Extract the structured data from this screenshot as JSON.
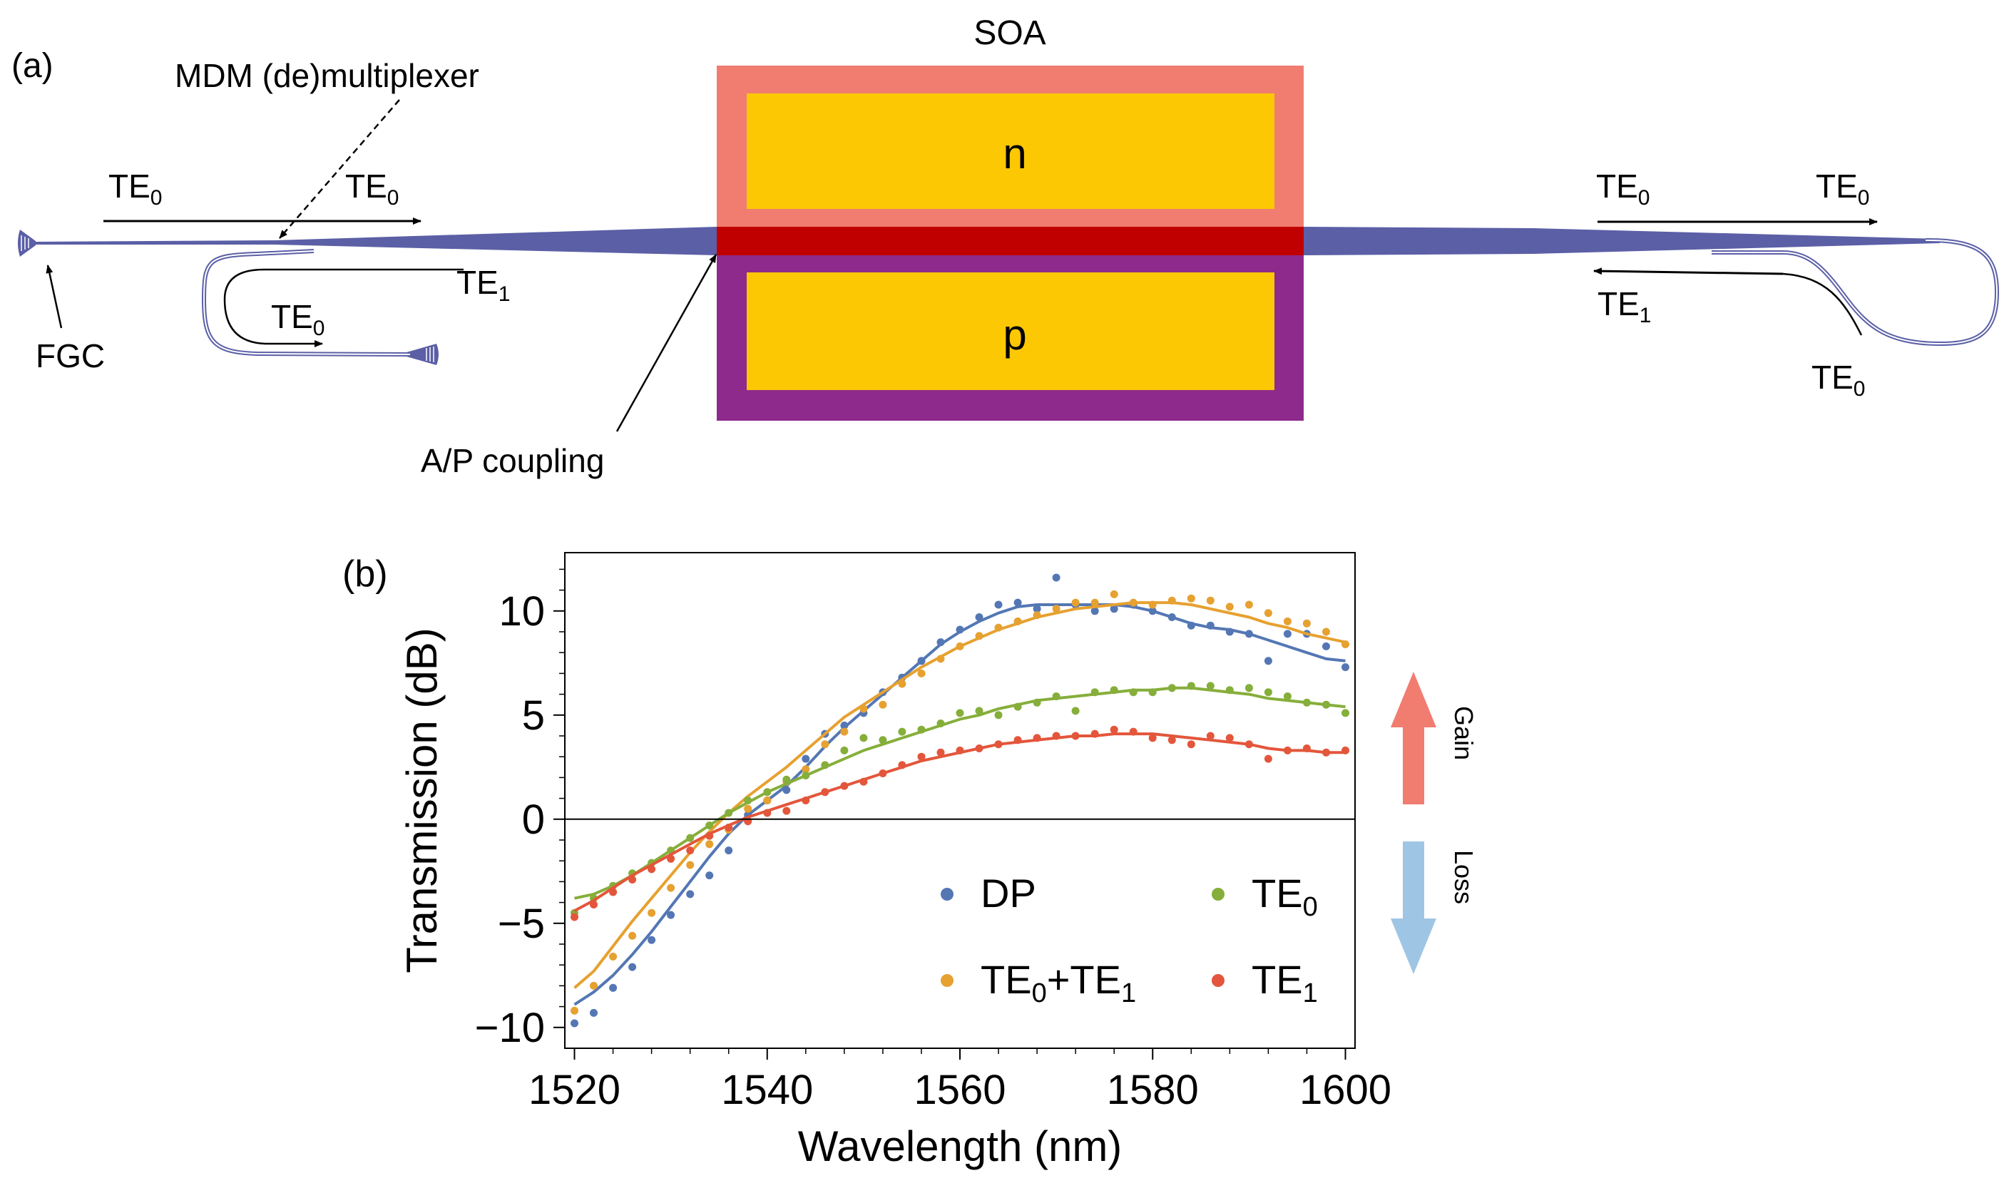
{
  "panel_a": {
    "label": "(a)",
    "soa_label": "SOA",
    "n_label": "n",
    "p_label": "p",
    "mdm_label": "MDM (de)multiplexer",
    "fgc_label": "FGC",
    "ap_label": "A/P coupling",
    "mode_te": "TE",
    "sub0": "0",
    "sub1": "1",
    "colors": {
      "waveguide": "#5b5fa6",
      "soa_outer_top": "#f17c70",
      "soa_outer_bottom": "#8e2a8c",
      "pad": "#fcc804",
      "active": "#c00000"
    }
  },
  "panel_b": {
    "label": "(b)"
  },
  "side": {
    "gain": "Gain",
    "loss": "Loss",
    "gain_color": "#f17c70",
    "loss_color": "#9fc5e4"
  },
  "chart_data": {
    "type": "scatter",
    "xlabel": "Wavelength (nm)",
    "ylabel": "Transmission (dB)",
    "xlim": [
      1519,
      1601
    ],
    "ylim": [
      -11,
      12.8
    ],
    "xticks": [
      1520,
      1540,
      1560,
      1580,
      1600
    ],
    "yticks": [
      -10,
      -5,
      0,
      5,
      10
    ],
    "legend_position": "lower-right",
    "series": [
      {
        "name": "DP",
        "name_plain": "DP",
        "color": "#5477b4",
        "points_x": [
          1520,
          1522,
          1524,
          1526,
          1528,
          1530,
          1532,
          1534,
          1536,
          1538,
          1540,
          1542,
          1544,
          1546,
          1548,
          1550,
          1552,
          1554,
          1556,
          1558,
          1560,
          1562,
          1564,
          1566,
          1568,
          1570,
          1572,
          1574,
          1576,
          1578,
          1580,
          1582,
          1584,
          1586,
          1588,
          1590,
          1592,
          1594,
          1596,
          1598,
          1600
        ],
        "points_y": [
          -9.8,
          -9.3,
          -8.1,
          -7.1,
          -5.8,
          -4.6,
          -3.6,
          -2.7,
          -1.5,
          0.2,
          0.9,
          1.4,
          2.9,
          4.1,
          4.5,
          5.1,
          6.1,
          6.8,
          7.6,
          8.5,
          9.1,
          9.7,
          10.3,
          10.4,
          10.1,
          11.6,
          10.3,
          10.0,
          10.1,
          10.3,
          10.0,
          9.7,
          9.3,
          9.3,
          9.0,
          8.9,
          7.6,
          8.9,
          8.9,
          8.3,
          7.3
        ],
        "curve_y": [
          -8.9,
          -8.3,
          -7.5,
          -6.5,
          -5.4,
          -4.2,
          -3.0,
          -1.8,
          -0.7,
          0.2,
          0.9,
          1.6,
          2.5,
          3.5,
          4.4,
          5.2,
          6.0,
          6.8,
          7.6,
          8.4,
          9.0,
          9.5,
          9.9,
          10.2,
          10.3,
          10.3,
          10.3,
          10.3,
          10.3,
          10.2,
          10.0,
          9.7,
          9.4,
          9.2,
          9.1,
          8.9,
          8.6,
          8.3,
          8.0,
          7.7,
          7.6
        ]
      },
      {
        "name": "TE0+TE1",
        "name_plain": "TE0+TE1",
        "color": "#e6a130",
        "points_x": [
          1520,
          1522,
          1524,
          1526,
          1528,
          1530,
          1532,
          1534,
          1536,
          1538,
          1540,
          1542,
          1544,
          1546,
          1548,
          1550,
          1552,
          1554,
          1556,
          1558,
          1560,
          1562,
          1564,
          1566,
          1568,
          1570,
          1572,
          1574,
          1576,
          1578,
          1580,
          1582,
          1584,
          1586,
          1588,
          1590,
          1592,
          1594,
          1596,
          1598,
          1600
        ],
        "points_y": [
          -9.2,
          -8.0,
          -6.6,
          -5.6,
          -4.5,
          -3.3,
          -2.2,
          -1.2,
          -0.5,
          0.5,
          0.9,
          1.8,
          2.4,
          3.6,
          4.2,
          5.3,
          5.5,
          6.5,
          7.0,
          7.7,
          8.3,
          8.8,
          9.2,
          9.5,
          9.8,
          10.1,
          10.4,
          10.4,
          10.8,
          10.4,
          10.3,
          10.5,
          10.6,
          10.5,
          10.2,
          10.3,
          9.9,
          9.5,
          9.4,
          9.0,
          8.4
        ],
        "curve_y": [
          -8.1,
          -7.3,
          -6.1,
          -4.9,
          -3.8,
          -2.7,
          -1.6,
          -0.6,
          0.3,
          1.1,
          1.8,
          2.5,
          3.3,
          4.1,
          4.9,
          5.5,
          6.1,
          6.7,
          7.3,
          7.8,
          8.3,
          8.7,
          9.1,
          9.4,
          9.7,
          9.9,
          10.1,
          10.2,
          10.3,
          10.4,
          10.4,
          10.4,
          10.3,
          10.1,
          9.9,
          9.7,
          9.4,
          9.2,
          8.9,
          8.7,
          8.5
        ]
      },
      {
        "name": "TE0",
        "name_plain": "TE0",
        "color": "#86ae3a",
        "points_x": [
          1520,
          1522,
          1524,
          1526,
          1528,
          1530,
          1532,
          1534,
          1536,
          1538,
          1540,
          1542,
          1544,
          1546,
          1548,
          1550,
          1552,
          1554,
          1556,
          1558,
          1560,
          1562,
          1564,
          1566,
          1568,
          1570,
          1572,
          1574,
          1576,
          1578,
          1580,
          1582,
          1584,
          1586,
          1588,
          1590,
          1592,
          1594,
          1596,
          1598,
          1600
        ],
        "points_y": [
          -4.5,
          -3.8,
          -3.2,
          -2.6,
          -2.1,
          -1.5,
          -0.9,
          -0.3,
          0.3,
          0.9,
          1.3,
          1.9,
          2.1,
          2.6,
          3.3,
          3.9,
          3.8,
          4.2,
          4.3,
          4.6,
          5.1,
          5.2,
          5.0,
          5.4,
          5.6,
          5.9,
          5.2,
          6.1,
          6.2,
          6.1,
          6.1,
          6.3,
          6.4,
          6.4,
          6.2,
          6.3,
          6.1,
          5.9,
          5.6,
          5.5,
          5.1
        ],
        "curve_y": [
          -3.8,
          -3.6,
          -3.2,
          -2.7,
          -2.1,
          -1.5,
          -0.9,
          -0.3,
          0.3,
          0.8,
          1.3,
          1.7,
          2.1,
          2.5,
          2.9,
          3.3,
          3.6,
          3.9,
          4.2,
          4.5,
          4.8,
          5.0,
          5.3,
          5.5,
          5.7,
          5.8,
          5.9,
          6.0,
          6.1,
          6.2,
          6.2,
          6.3,
          6.3,
          6.2,
          6.1,
          6.0,
          5.8,
          5.7,
          5.6,
          5.5,
          5.4
        ]
      },
      {
        "name": "TE1",
        "name_plain": "TE1",
        "color": "#e3563b",
        "points_x": [
          1520,
          1522,
          1524,
          1526,
          1528,
          1530,
          1532,
          1534,
          1536,
          1538,
          1540,
          1542,
          1544,
          1546,
          1548,
          1550,
          1552,
          1554,
          1556,
          1558,
          1560,
          1562,
          1564,
          1566,
          1568,
          1570,
          1572,
          1574,
          1576,
          1578,
          1580,
          1582,
          1584,
          1586,
          1588,
          1590,
          1592,
          1594,
          1596,
          1598,
          1600
        ],
        "points_y": [
          -4.7,
          -4.1,
          -3.5,
          -2.9,
          -2.4,
          -1.9,
          -1.5,
          -0.8,
          -0.4,
          -0.1,
          0.3,
          0.4,
          0.9,
          1.3,
          1.6,
          1.8,
          2.2,
          2.6,
          3.0,
          3.2,
          3.3,
          3.4,
          3.6,
          3.8,
          3.9,
          4.0,
          4.0,
          4.1,
          4.3,
          4.2,
          3.9,
          3.8,
          3.6,
          4.0,
          3.9,
          3.6,
          2.9,
          3.3,
          3.4,
          3.2,
          3.3
        ],
        "curve_y": [
          -4.4,
          -3.9,
          -3.3,
          -2.7,
          -2.2,
          -1.7,
          -1.2,
          -0.7,
          -0.3,
          0.1,
          0.4,
          0.7,
          1.0,
          1.3,
          1.6,
          1.9,
          2.2,
          2.5,
          2.8,
          3.0,
          3.2,
          3.4,
          3.6,
          3.7,
          3.8,
          3.9,
          4.0,
          4.0,
          4.1,
          4.1,
          4.1,
          4.0,
          3.9,
          3.8,
          3.7,
          3.6,
          3.4,
          3.3,
          3.3,
          3.2,
          3.2
        ]
      }
    ]
  }
}
